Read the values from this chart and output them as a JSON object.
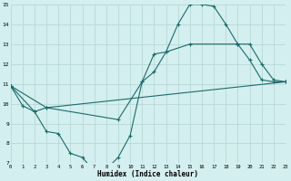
{
  "bg_color": "#d4efef",
  "grid_color": "#b8d8d8",
  "line_color": "#1a6b6b",
  "line1_x": [
    0,
    1,
    2,
    3,
    4,
    5,
    6,
    7,
    8,
    9,
    10,
    11,
    12,
    13,
    14,
    15,
    16,
    17,
    18,
    19,
    20,
    21,
    22,
    23
  ],
  "line1_y": [
    10.9,
    9.9,
    9.6,
    8.6,
    8.5,
    7.5,
    7.3,
    6.6,
    6.7,
    7.3,
    8.4,
    11.1,
    12.5,
    12.6,
    14.0,
    15.0,
    15.0,
    14.9,
    14.0,
    13.0,
    12.2,
    11.2,
    11.1,
    11.1
  ],
  "line2_x": [
    0,
    2,
    3,
    9,
    11,
    12,
    13,
    15,
    19,
    20,
    21,
    22,
    23
  ],
  "line2_y": [
    10.9,
    9.6,
    9.8,
    9.2,
    11.1,
    11.6,
    12.6,
    13.0,
    13.0,
    13.0,
    12.0,
    11.2,
    11.1
  ],
  "line3_x": [
    0,
    3,
    23
  ],
  "line3_y": [
    10.9,
    9.8,
    11.1
  ],
  "xlim": [
    0,
    23
  ],
  "ylim": [
    7,
    15
  ],
  "yticks": [
    7,
    8,
    9,
    10,
    11,
    12,
    13,
    14,
    15
  ],
  "xticks": [
    0,
    1,
    2,
    3,
    4,
    5,
    6,
    7,
    8,
    9,
    10,
    11,
    12,
    13,
    14,
    15,
    16,
    17,
    18,
    19,
    20,
    21,
    22,
    23
  ],
  "xlabel": "Humidex (Indice chaleur)",
  "marker": "+",
  "linewidth": 0.8,
  "markersize": 3.5,
  "markeredgewidth": 0.8
}
